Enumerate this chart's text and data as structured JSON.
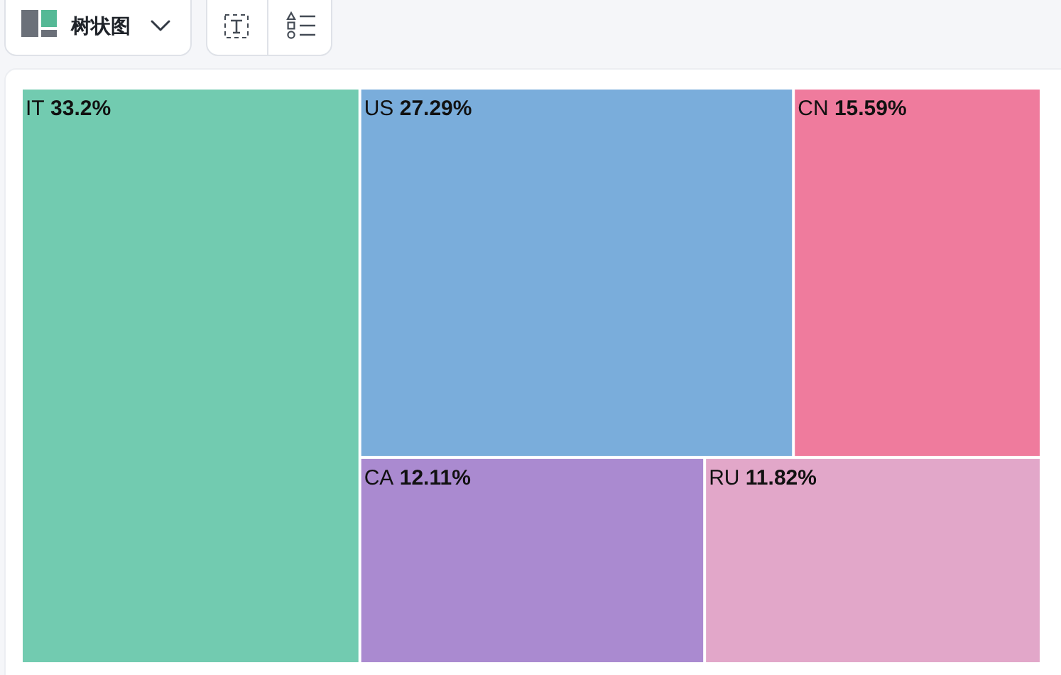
{
  "chart_data": {
    "type": "other",
    "annotations": [
      "树状图"
    ],
    "categories": [
      "IT",
      "US",
      "CN",
      "CA",
      "RU"
    ],
    "values": [
      33.2,
      27.29,
      15.59,
      12.11,
      11.82
    ],
    "value_labels": [
      "33.2%",
      "27.29%",
      "15.59%",
      "12.11%",
      "11.82%"
    ],
    "colors": [
      "#72cbb0",
      "#7aaddb",
      "#ef7b9d",
      "#aa8ad0",
      "#e2a7c9"
    ]
  }
}
